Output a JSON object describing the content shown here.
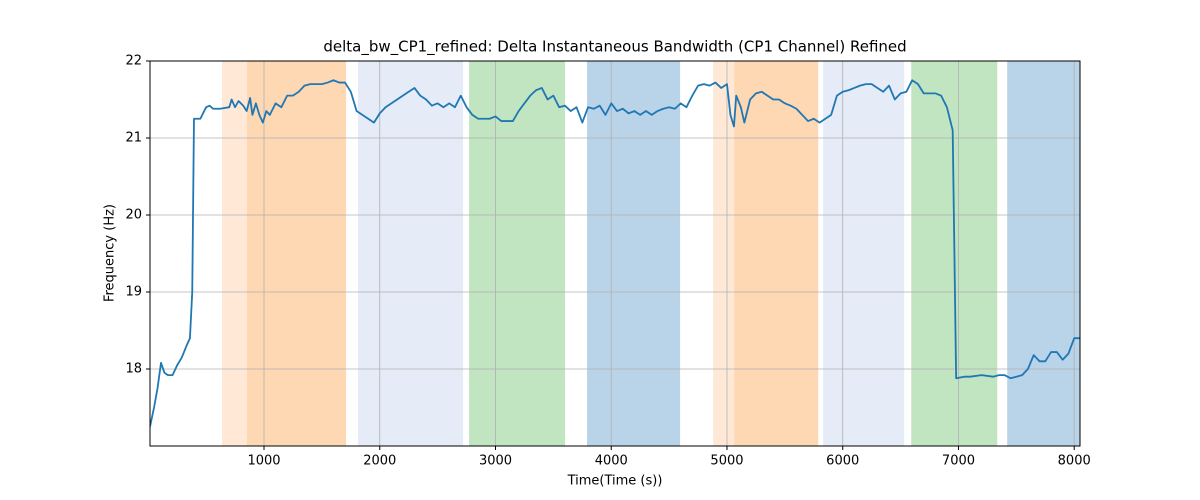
{
  "chart_data": {
    "type": "line",
    "title": "delta_bw_CP1_refined: Delta Instantaneous Bandwidth (CP1 Channel) Refined",
    "xlabel": "Time(Time (s))",
    "ylabel": "Frequency (Hz)",
    "xlim": [
      15,
      8050
    ],
    "ylim": [
      17,
      22
    ],
    "xticks": [
      1000,
      2000,
      3000,
      4000,
      5000,
      6000,
      7000,
      8000
    ],
    "yticks": [
      18,
      19,
      20,
      21,
      22
    ],
    "grid": true,
    "spans": [
      {
        "start": 637,
        "end": 853,
        "color": "#ffe9d6"
      },
      {
        "start": 853,
        "end": 1709,
        "color": "#fed7b3"
      },
      {
        "start": 1812,
        "end": 2720,
        "color": "#e5ecf7"
      },
      {
        "start": 2772,
        "end": 3601,
        "color": "#c1e4c1"
      },
      {
        "start": 3791,
        "end": 4595,
        "color": "#b9d4e8"
      },
      {
        "start": 4880,
        "end": 5062,
        "color": "#ffe9d6"
      },
      {
        "start": 5062,
        "end": 5788,
        "color": "#fed7b3"
      },
      {
        "start": 5831,
        "end": 6531,
        "color": "#e5ecf7"
      },
      {
        "start": 6592,
        "end": 7335,
        "color": "#c1e4c1"
      },
      {
        "start": 7421,
        "end": 8050,
        "color": "#b9d4e8"
      }
    ],
    "x": [
      15,
      50,
      80,
      110,
      140,
      170,
      210,
      250,
      290,
      330,
      360,
      380,
      395,
      450,
      500,
      530,
      560,
      620,
      700,
      720,
      750,
      780,
      820,
      850,
      880,
      900,
      930,
      960,
      990,
      1020,
      1050,
      1100,
      1150,
      1200,
      1250,
      1300,
      1350,
      1400,
      1450,
      1500,
      1550,
      1600,
      1650,
      1700,
      1750,
      1800,
      1850,
      1900,
      1950,
      2000,
      2050,
      2100,
      2150,
      2200,
      2250,
      2300,
      2350,
      2400,
      2450,
      2500,
      2550,
      2600,
      2650,
      2700,
      2750,
      2800,
      2850,
      2900,
      2950,
      3000,
      3050,
      3100,
      3150,
      3200,
      3250,
      3300,
      3350,
      3400,
      3450,
      3500,
      3550,
      3600,
      3650,
      3700,
      3750,
      3800,
      3850,
      3900,
      3950,
      4000,
      4050,
      4100,
      4150,
      4200,
      4250,
      4300,
      4350,
      4400,
      4450,
      4500,
      4550,
      4600,
      4650,
      4700,
      4750,
      4800,
      4850,
      4900,
      4950,
      5000,
      5030,
      5060,
      5080,
      5120,
      5150,
      5200,
      5250,
      5300,
      5350,
      5400,
      5450,
      5500,
      5550,
      5600,
      5650,
      5700,
      5750,
      5800,
      5850,
      5900,
      5950,
      6000,
      6050,
      6100,
      6150,
      6200,
      6250,
      6300,
      6350,
      6400,
      6450,
      6500,
      6550,
      6600,
      6650,
      6700,
      6750,
      6800,
      6850,
      6900,
      6950,
      6980,
      7050,
      7100,
      7200,
      7300,
      7350,
      7400,
      7450,
      7500,
      7550,
      7600,
      7650,
      7700,
      7750,
      7800,
      7850,
      7900,
      7950,
      8000,
      8050
    ],
    "series": [
      {
        "name": "delta_bw_CP1_refined",
        "color": "#1f77b4",
        "values": [
          17.25,
          17.5,
          17.75,
          18.08,
          17.95,
          17.92,
          17.92,
          18.05,
          18.15,
          18.3,
          18.4,
          19.0,
          21.25,
          21.25,
          21.4,
          21.42,
          21.38,
          21.38,
          21.4,
          21.5,
          21.4,
          21.48,
          21.42,
          21.35,
          21.52,
          21.3,
          21.45,
          21.3,
          21.2,
          21.35,
          21.3,
          21.45,
          21.4,
          21.55,
          21.55,
          21.6,
          21.68,
          21.7,
          21.7,
          21.7,
          21.72,
          21.75,
          21.72,
          21.72,
          21.6,
          21.35,
          21.3,
          21.25,
          21.2,
          21.32,
          21.4,
          21.45,
          21.5,
          21.55,
          21.6,
          21.65,
          21.55,
          21.5,
          21.42,
          21.45,
          21.4,
          21.45,
          21.4,
          21.55,
          21.4,
          21.3,
          21.25,
          21.25,
          21.25,
          21.28,
          21.22,
          21.22,
          21.22,
          21.35,
          21.45,
          21.55,
          21.62,
          21.65,
          21.5,
          21.55,
          21.4,
          21.42,
          21.35,
          21.4,
          21.2,
          21.4,
          21.38,
          21.42,
          21.3,
          21.45,
          21.35,
          21.38,
          21.32,
          21.35,
          21.3,
          21.35,
          21.3,
          21.35,
          21.38,
          21.4,
          21.38,
          21.45,
          21.4,
          21.55,
          21.68,
          21.7,
          21.68,
          21.72,
          21.65,
          21.7,
          21.3,
          21.15,
          21.55,
          21.4,
          21.2,
          21.5,
          21.58,
          21.6,
          21.55,
          21.5,
          21.5,
          21.45,
          21.42,
          21.38,
          21.3,
          21.22,
          21.25,
          21.2,
          21.25,
          21.3,
          21.55,
          21.6,
          21.62,
          21.65,
          21.68,
          21.7,
          21.7,
          21.65,
          21.6,
          21.68,
          21.5,
          21.58,
          21.6,
          21.75,
          21.7,
          21.58,
          21.58,
          21.58,
          21.55,
          21.4,
          21.1,
          17.88,
          17.9,
          17.9,
          17.92,
          17.9,
          17.92,
          17.92,
          17.88,
          17.9,
          17.92,
          18.0,
          18.18,
          18.1,
          18.1,
          18.22,
          18.22,
          18.12,
          18.2,
          18.4,
          18.4
        ]
      }
    ]
  }
}
